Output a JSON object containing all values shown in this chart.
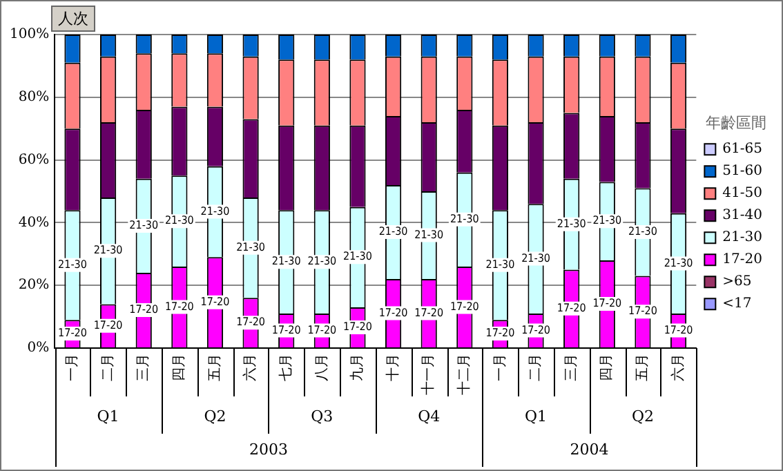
{
  "chart_data": {
    "type": "bar",
    "stacked": true,
    "ylabel": "人次",
    "legend_title": "年齡區間",
    "legend": "right",
    "grid": "y",
    "categories": [
      "一月",
      "二月",
      "三月",
      "四月",
      "五月",
      "六月",
      "七月",
      "八月",
      "九月",
      "十月",
      "十一月",
      "十二月",
      "一月",
      "二月",
      "三月",
      "四月",
      "五月",
      "六月"
    ],
    "annotations": [
      "Q1",
      "Q2",
      "Q3",
      "Q4",
      "Q1",
      "Q2",
      "2003",
      "2004"
    ],
    "ylim": [
      0,
      100
    ],
    "yticks": [
      {
        "value": 0,
        "label": "0%"
      },
      {
        "value": 20,
        "label": "20%"
      },
      {
        "value": 40,
        "label": "40%"
      },
      {
        "value": 60,
        "label": "60%"
      },
      {
        "value": 80,
        "label": "80%"
      },
      {
        "value": 100,
        "label": "100%"
      }
    ],
    "series": [
      {
        "name": "<17",
        "color": "#9999ff",
        "values": [
          0,
          0,
          0,
          0,
          0,
          0,
          0,
          0,
          0,
          0,
          0,
          0,
          0,
          0,
          0,
          0,
          0,
          0
        ]
      },
      {
        "name": ">65",
        "color": "#993366",
        "values": [
          0,
          0,
          0,
          0,
          0,
          0,
          0,
          0,
          0,
          0,
          0,
          0,
          0,
          0,
          0,
          0,
          0,
          0
        ]
      },
      {
        "name": "17-20",
        "color": "#ff00ff",
        "values": [
          9,
          14,
          24,
          26,
          29,
          16,
          11,
          11,
          13,
          22,
          22,
          26,
          9,
          11,
          25,
          28,
          23,
          11
        ],
        "value_labels": [
          "17-20",
          "17-20",
          "17-20",
          "17-20",
          "17-20",
          "17-20",
          "17-20",
          "17-20",
          "17-20",
          "17-20",
          "17-20",
          "17-20",
          "17-20",
          "17-20",
          "17-20",
          "17-20",
          "17-20",
          "17-20"
        ]
      },
      {
        "name": "21-30",
        "color": "#ccffff",
        "values": [
          35,
          34,
          30,
          29,
          29,
          32,
          33,
          33,
          32,
          30,
          28,
          30,
          35,
          35,
          29,
          25,
          28,
          32
        ],
        "value_labels": [
          "21-30",
          "21-30",
          "21-30",
          "21-30",
          "21-30",
          "21-30",
          "21-30",
          "21-30",
          "21-30",
          "21-30",
          "21-30",
          "21-30",
          "21-30",
          "21-30",
          "21-30",
          "21-30",
          "21-30",
          "21-30"
        ]
      },
      {
        "name": "31-40",
        "color": "#660066",
        "values": [
          26,
          24,
          22,
          22,
          19,
          25,
          27,
          27,
          26,
          22,
          22,
          20,
          27,
          26,
          21,
          21,
          21,
          27
        ]
      },
      {
        "name": "41-50",
        "color": "#ff8080",
        "values": [
          21,
          21,
          18,
          17,
          17,
          20,
          21,
          21,
          21,
          19,
          21,
          17,
          21,
          21,
          18,
          19,
          21,
          21
        ]
      },
      {
        "name": "51-60",
        "color": "#0066cc",
        "values": [
          9,
          7,
          6,
          6,
          6,
          7,
          8,
          8,
          8,
          7,
          7,
          7,
          8,
          7,
          7,
          7,
          7,
          9
        ]
      },
      {
        "name": "61-65",
        "color": "#ccccff",
        "values": [
          0,
          0,
          0,
          0,
          0,
          0,
          0,
          0,
          0,
          0,
          0,
          0,
          0,
          0,
          0,
          0,
          0,
          0
        ]
      }
    ]
  }
}
